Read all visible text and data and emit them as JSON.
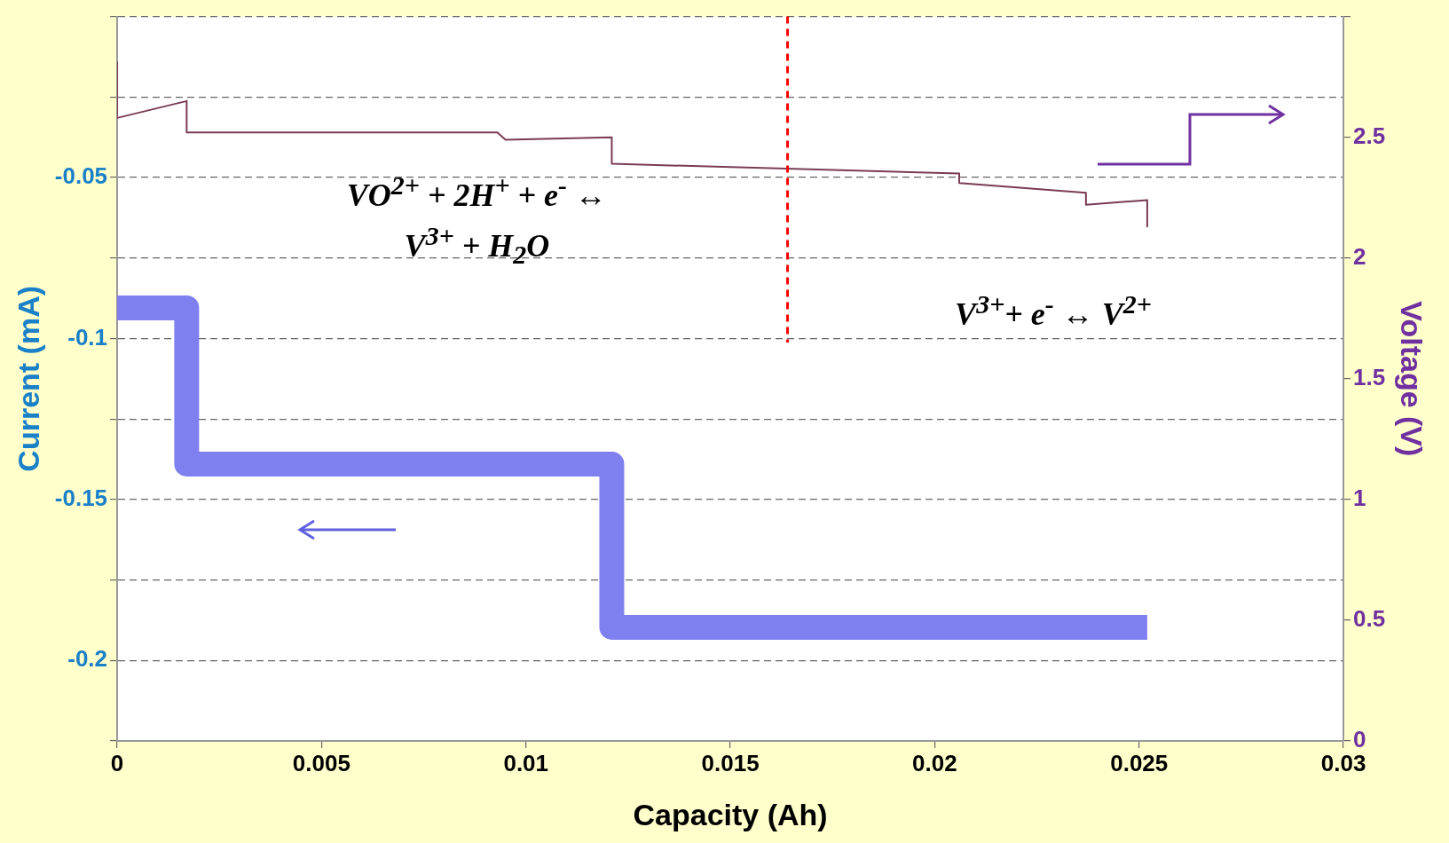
{
  "chart_data": {
    "type": "line",
    "xlabel": "Capacity (Ah)",
    "ylabel": "Current (mA)",
    "y2label": "Voltage (V)",
    "xlim": [
      0,
      0.03
    ],
    "xticks": [
      0,
      0.005,
      0.01,
      0.015,
      0.02,
      0.025,
      0.03
    ],
    "ylim": [
      -0.225,
      0
    ],
    "yticks": [
      {
        "value": -0.225,
        "label": null
      },
      {
        "value": -0.2,
        "label": "-0.2"
      },
      {
        "value": -0.175,
        "label": null
      },
      {
        "value": -0.15,
        "label": "-0.15"
      },
      {
        "value": -0.125,
        "label": null
      },
      {
        "value": -0.1,
        "label": "-0.1"
      },
      {
        "value": -0.075,
        "label": null
      },
      {
        "value": -0.05,
        "label": "-0.05"
      },
      {
        "value": -0.025,
        "label": null
      },
      {
        "value": 0,
        "label": null
      }
    ],
    "y2lim": [
      0,
      3
    ],
    "y2ticks": [
      0,
      0.5,
      1,
      1.5,
      2,
      2.5,
      {
        "value": 3,
        "label": null
      }
    ],
    "grid": "y",
    "legend": false,
    "marker": "none",
    "line_style": "solid",
    "series": [
      {
        "color": "#7f7ff0",
        "x": [
          0,
          0.0017,
          0.0017,
          0.0121,
          0.0121,
          0.0252
        ],
        "values": [
          -0.0905,
          -0.0905,
          -0.139,
          -0.139,
          -0.1897,
          -0.1897
        ]
      },
      {
        "color": "#7a3b55",
        "axis": "y2",
        "x": [
          0,
          0,
          0.0017,
          0.0017,
          0.0093,
          0.0095,
          0.0121,
          0.0121,
          0.0206,
          0.0206,
          0.0237,
          0.0237,
          0.0252,
          0.0252
        ],
        "values": [
          2.81,
          2.58,
          2.65,
          2.52,
          2.52,
          2.49,
          2.5,
          2.39,
          2.35,
          2.31,
          2.27,
          2.22,
          2.24,
          2.13
        ]
      }
    ],
    "ref_lines": [
      {
        "axis": "x",
        "value": 0.0164,
        "color": "#ff0000",
        "line_style": "dashed"
      }
    ],
    "annotations": [
      "VO$^{2+}$ + 2H$^{+}$ + e$^{-}$ ↔ V$^{3+}$ + H$_{2}$O",
      "V$^{3+}$+ e$^{-}$ ↔ V$^{2+}$"
    ]
  }
}
